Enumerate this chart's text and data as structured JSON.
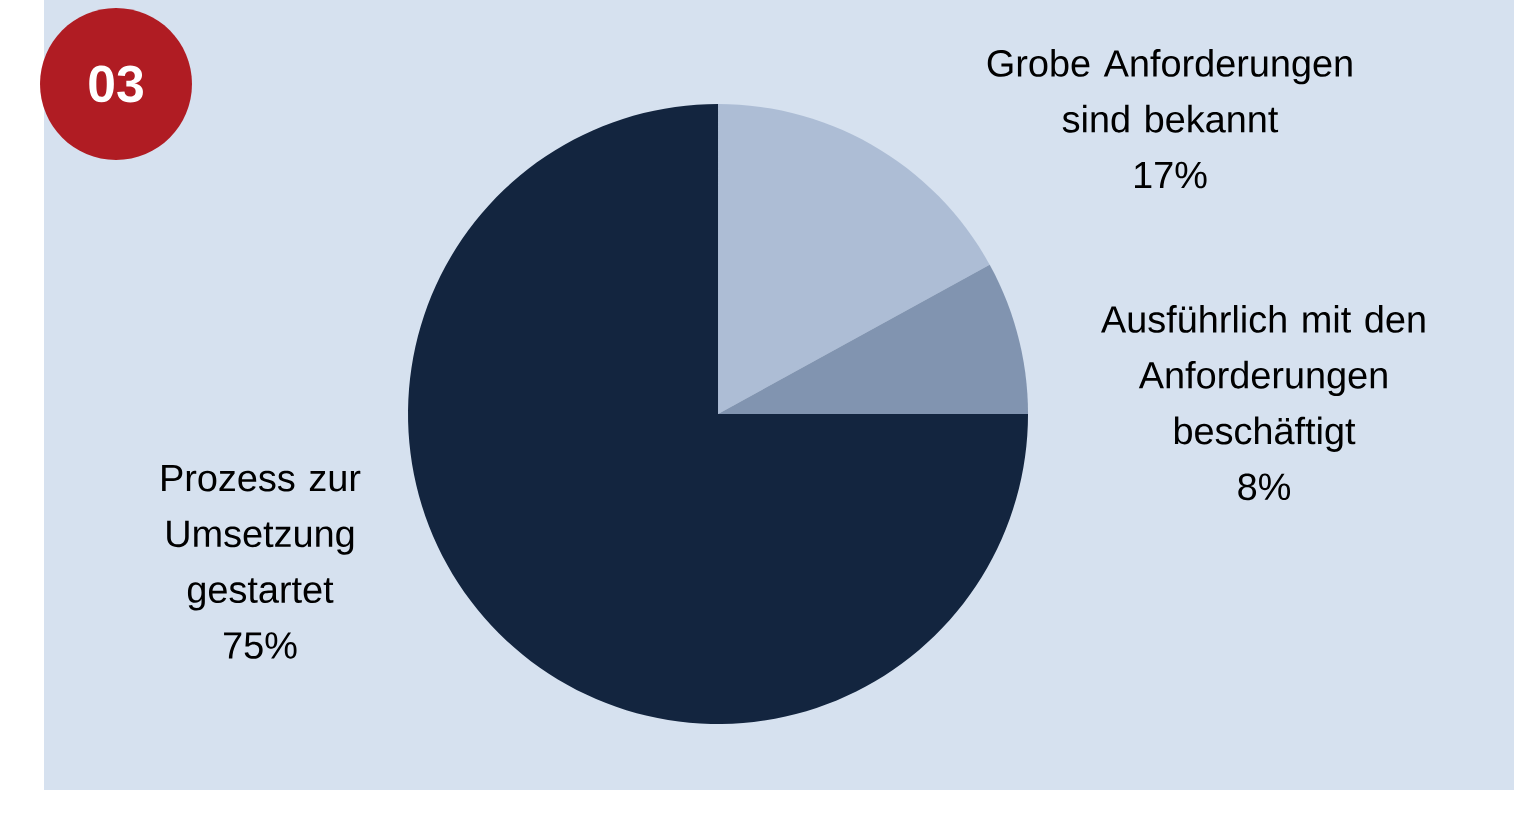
{
  "chart_data": {
    "type": "pie",
    "categories": [
      "Grobe Anforderungen sind bekannt",
      "Ausführlich mit den Anforderungen beschäftigt",
      "Prozess zur Umsetzung gestartet"
    ],
    "values": [
      17,
      8,
      75
    ],
    "value_labels": [
      "17%",
      "8%",
      "75%"
    ],
    "colors": [
      "#adbdd5",
      "#8194b0",
      "#13253f"
    ],
    "annotations": [
      "03"
    ]
  }
}
